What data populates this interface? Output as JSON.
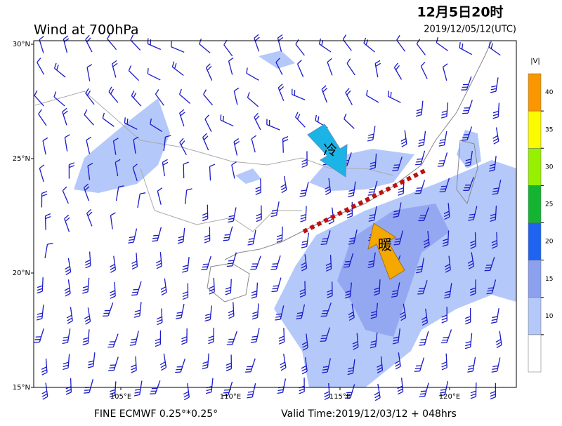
{
  "header": {
    "title": "Wind at 700hPa",
    "local_time": "12月5日20时",
    "utc_time": "2019/12/05/12(UTC)"
  },
  "map": {
    "lat_ticks": [
      {
        "value": 30,
        "label": "30°N"
      },
      {
        "value": 25,
        "label": "25°N"
      },
      {
        "value": 20,
        "label": "20°N"
      },
      {
        "value": 15,
        "label": "15°N"
      }
    ],
    "lon_ticks": [
      {
        "value": 105,
        "label": "105°E"
      },
      {
        "value": 110,
        "label": "110°E"
      },
      {
        "value": 115,
        "label": "115°E"
      },
      {
        "value": 120,
        "label": "120°E"
      }
    ],
    "annotations": {
      "cold": "冷",
      "warm": "暖"
    }
  },
  "colorbar": {
    "label": "|V|",
    "ticks": [
      10,
      15,
      20,
      25,
      30,
      35,
      40
    ],
    "colors": [
      "#ffffff",
      "#b4c8fa",
      "#8ca0f0",
      "#1e64f0",
      "#14b432",
      "#96f000",
      "#fafa00",
      "#fa9600"
    ]
  },
  "footer": {
    "model": "FINE ECMWF 0.25°*0.25°",
    "valid_time": "Valid Time:2019/12/03/12 + 048hrs"
  }
}
